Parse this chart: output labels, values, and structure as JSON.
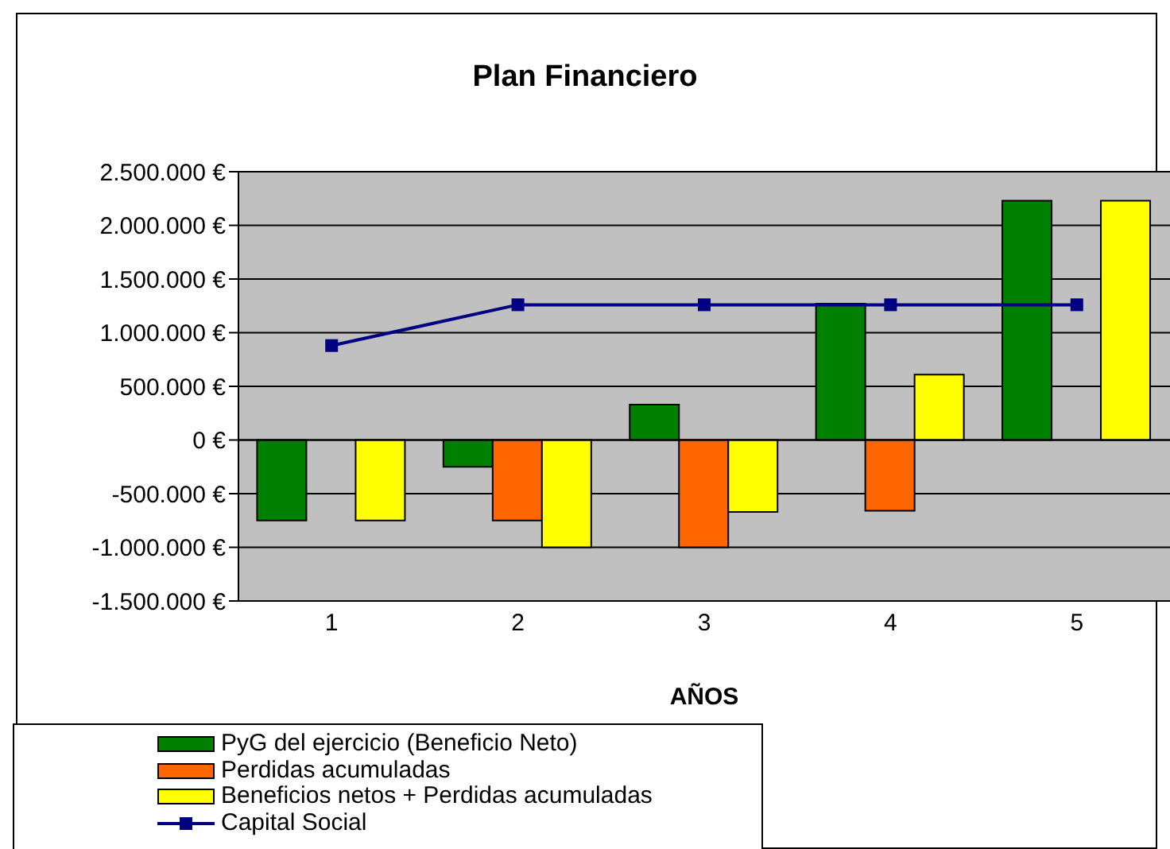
{
  "chart_data": {
    "type": "bar",
    "title": "Plan Financiero",
    "xlabel": "AÑOS",
    "categories": [
      "1",
      "2",
      "3",
      "4",
      "5"
    ],
    "series": [
      {
        "name": "PyG del ejercicio (Beneficio Neto)",
        "color": "#008000",
        "values": [
          -750000,
          -250000,
          330000,
          1270000,
          2230000
        ]
      },
      {
        "name": "Perdidas acumuladas",
        "color": "#ff6600",
        "values": [
          null,
          -750000,
          -1000000,
          -660000,
          null
        ]
      },
      {
        "name": "Beneficios netos + Perdidas acumuladas",
        "color": "#ffff00",
        "values": [
          -750000,
          -1000000,
          -670000,
          610000,
          2230000
        ]
      },
      {
        "name": "Capital Social",
        "type": "line",
        "color": "#000080",
        "marker": "square",
        "values": [
          880000,
          1260000,
          1260000,
          1260000,
          1260000
        ]
      }
    ],
    "ylim": [
      -1500000,
      2500000
    ],
    "yticks": [
      {
        "value": -1500000,
        "label": "-1.500.000 €"
      },
      {
        "value": -1000000,
        "label": "-1.000.000 €"
      },
      {
        "value": -500000,
        "label": "-500.000 €"
      },
      {
        "value": 0,
        "label": "0 €"
      },
      {
        "value": 500000,
        "label": "500.000 €"
      },
      {
        "value": 1000000,
        "label": "1.000.000 €"
      },
      {
        "value": 1500000,
        "label": "1.500.000 €"
      },
      {
        "value": 2000000,
        "label": "2.000.000 €"
      },
      {
        "value": 2500000,
        "label": "2.500.000 €"
      }
    ],
    "grid": "y",
    "legend": "bottom left"
  }
}
